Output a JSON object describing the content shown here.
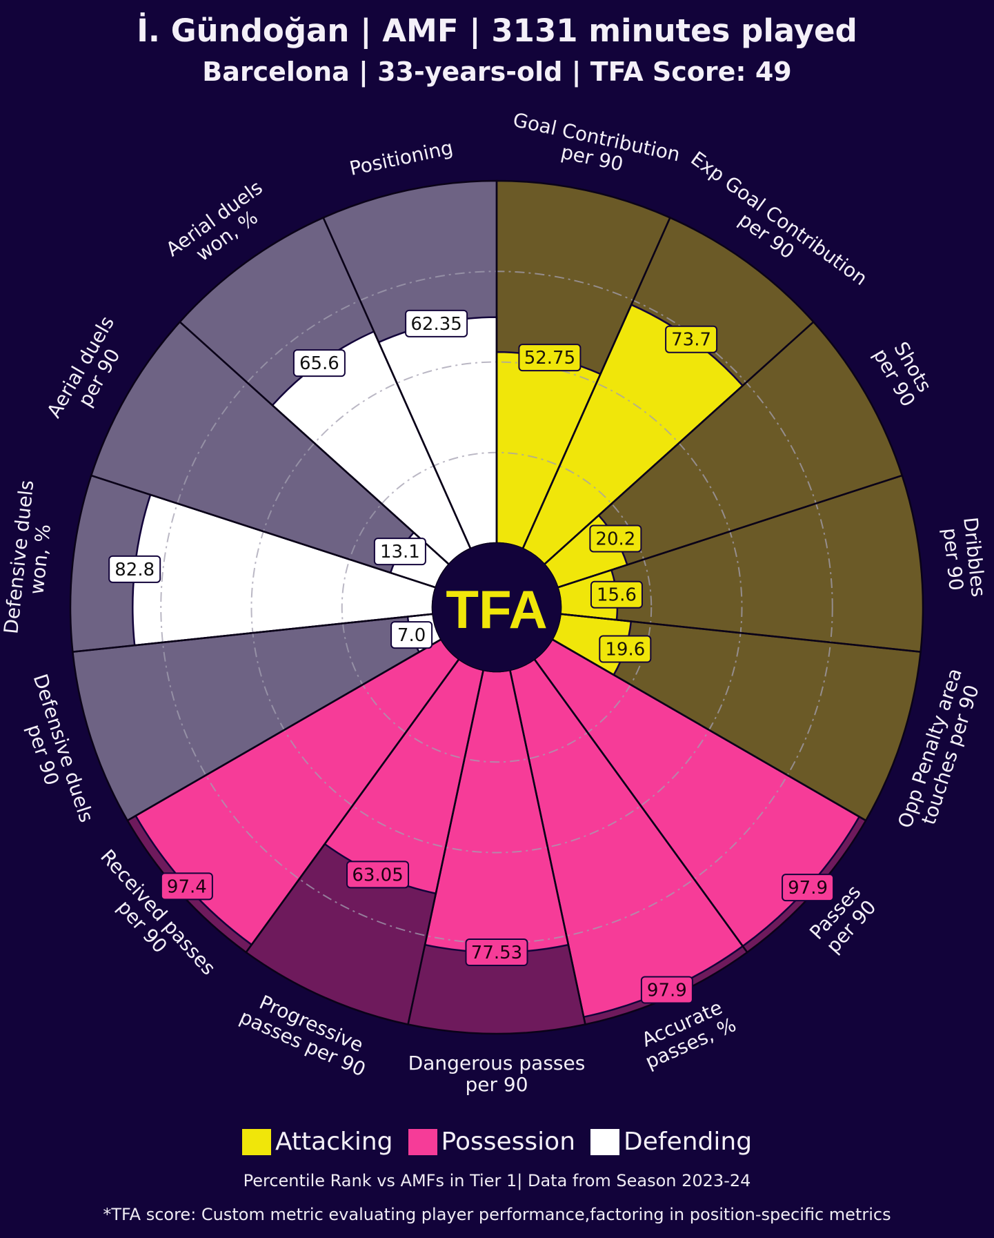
{
  "header": {
    "title": "İ. Gündoğan | AMF | 3131 minutes played",
    "subtitle": "Barcelona | 33-years-old | TFA Score: 49"
  },
  "logo_text": "TFA",
  "colors": {
    "background": "#12033a",
    "attacking": "#f0e60a",
    "attacking_bg": "#6b5a27",
    "possession": "#f63c98",
    "possession_bg": "#6e1a5c",
    "defending": "#ffffff",
    "defending_bg": "#6e6384",
    "logo_text": "#f0e60a"
  },
  "chart_data": {
    "type": "polar-bar",
    "rlim": [
      0,
      100
    ],
    "grid": true,
    "legend_position": "bottom-center",
    "categories": [
      {
        "label": "Goal Contribution\nper 90",
        "value": 52.75,
        "value_label": "52.75",
        "group": "attacking"
      },
      {
        "label": "Exp Goal Contribution\nper 90",
        "value": 73.7,
        "value_label": "73.7",
        "group": "attacking"
      },
      {
        "label": "Shots\nper 90",
        "value": 20.2,
        "value_label": "20.2",
        "group": "attacking"
      },
      {
        "label": "Dribbles\nper 90",
        "value": 15.6,
        "value_label": "15.6",
        "group": "attacking"
      },
      {
        "label": "Opp Penalty area\ntouches per 90",
        "value": 19.6,
        "value_label": "19.6",
        "group": "attacking"
      },
      {
        "label": "Passes\nper 90",
        "value": 97.9,
        "value_label": "97.9",
        "group": "possession"
      },
      {
        "label": "Accurate\npasses, %",
        "value": 97.9,
        "value_label": "97.9",
        "group": "possession"
      },
      {
        "label": "Dangerous passes\nper 90",
        "value": 77.53,
        "value_label": "77.53",
        "group": "possession"
      },
      {
        "label": "Progressive\npasses per 90",
        "value": 63.05,
        "value_label": "63.05",
        "group": "possession"
      },
      {
        "label": "Received passes\nper 90",
        "value": 97.4,
        "value_label": "97.4",
        "group": "possession"
      },
      {
        "label": "Defensive duels\nper 90",
        "value": 7.0,
        "value_label": "7.0",
        "group": "defending"
      },
      {
        "label": "Defensive duels\nwon, %",
        "value": 82.8,
        "value_label": "82.8",
        "group": "defending"
      },
      {
        "label": "Aerial duels\nper 90",
        "value": 13.1,
        "value_label": "13.1",
        "group": "defending"
      },
      {
        "label": "Aerial duels\nwon, %",
        "value": 65.6,
        "value_label": "65.6",
        "group": "defending"
      },
      {
        "label": "Positioning",
        "value": 62.35,
        "value_label": "62.35",
        "group": "defending"
      }
    ]
  },
  "legend": {
    "items": [
      {
        "label": "Attacking",
        "color": "#f0e60a"
      },
      {
        "label": "Possession",
        "color": "#f63c98"
      },
      {
        "label": "Defending",
        "color": "#ffffff"
      }
    ]
  },
  "footer": {
    "note1": "Percentile Rank vs AMFs in Tier 1| Data from Season 2023-24",
    "note2": "*TFA score: Custom metric evaluating player performance,factoring in position-specific metrics"
  }
}
